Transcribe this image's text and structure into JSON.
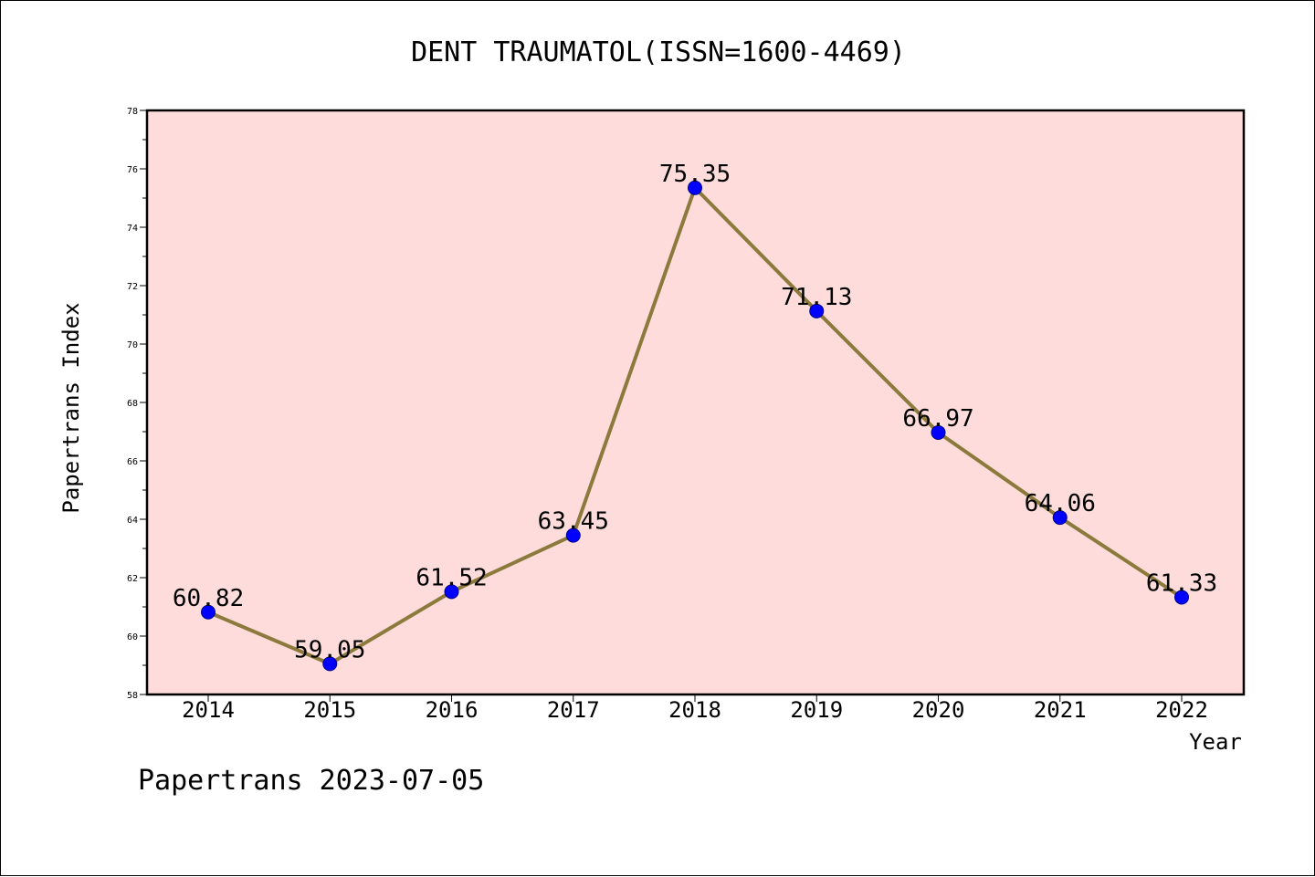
{
  "chart_data": {
    "type": "line",
    "title": "DENT TRAUMATOL(ISSN=1600-4469)",
    "xlabel": "Year",
    "ylabel": "Papertrans Index",
    "categories": [
      "2014",
      "2015",
      "2016",
      "2017",
      "2018",
      "2019",
      "2020",
      "2021",
      "2022"
    ],
    "series": [
      {
        "values": [
          60.82,
          59.05,
          61.52,
          63.45,
          75.35,
          71.13,
          66.97,
          64.06,
          61.33
        ],
        "labels": [
          "60.82",
          "59.05",
          "61.52",
          "63.45",
          "75.35",
          "71.13",
          "66.97",
          "64.06",
          "61.33"
        ]
      }
    ],
    "ylim": [
      58,
      78
    ],
    "yticks": [
      "58",
      "60",
      "62",
      "64",
      "66",
      "68",
      "70",
      "72",
      "74",
      "76",
      "78"
    ],
    "grid": false,
    "colors": {
      "plot_background": "#fddcdb",
      "line": "#8c7a3c",
      "marker": "#0000ff"
    }
  },
  "footer": "Papertrans 2023-07-05"
}
